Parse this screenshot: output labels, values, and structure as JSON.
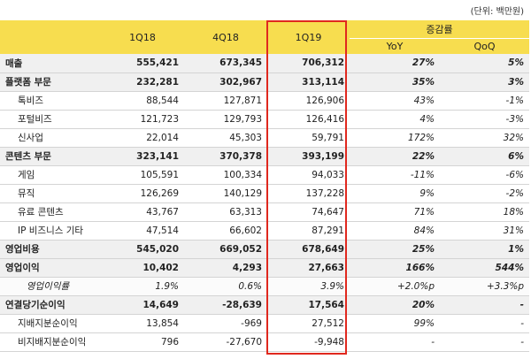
{
  "unit_note": "(단위: 백만원)",
  "headers": {
    "periods": [
      "1Q18",
      "4Q18",
      "1Q19"
    ],
    "growth": "증감률",
    "yoy": "YoY",
    "qoq": "QoQ"
  },
  "rows": [
    {
      "label": "매출",
      "v1": "555,421",
      "v2": "673,345",
      "v3": "706,312",
      "yoy": "27%",
      "qoq": "5%"
    },
    {
      "label": "플랫폼 부문",
      "v1": "232,281",
      "v2": "302,967",
      "v3": "313,114",
      "yoy": "35%",
      "qoq": "3%"
    },
    {
      "label": "톡비즈",
      "v1": "88,544",
      "v2": "127,871",
      "v3": "126,906",
      "yoy": "43%",
      "qoq": "-1%"
    },
    {
      "label": "포털비즈",
      "v1": "121,723",
      "v2": "129,793",
      "v3": "126,416",
      "yoy": "4%",
      "qoq": "-3%"
    },
    {
      "label": "신사업",
      "v1": "22,014",
      "v2": "45,303",
      "v3": "59,791",
      "yoy": "172%",
      "qoq": "32%"
    },
    {
      "label": "콘텐츠 부문",
      "v1": "323,141",
      "v2": "370,378",
      "v3": "393,199",
      "yoy": "22%",
      "qoq": "6%"
    },
    {
      "label": "게임",
      "v1": "105,591",
      "v2": "100,334",
      "v3": "94,033",
      "yoy": "-11%",
      "qoq": "-6%"
    },
    {
      "label": "뮤직",
      "v1": "126,269",
      "v2": "140,129",
      "v3": "137,228",
      "yoy": "9%",
      "qoq": "-2%"
    },
    {
      "label": "유료 콘텐츠",
      "v1": "43,767",
      "v2": "63,313",
      "v3": "74,647",
      "yoy": "71%",
      "qoq": "18%"
    },
    {
      "label": "IP 비즈니스 기타",
      "v1": "47,514",
      "v2": "66,602",
      "v3": "87,291",
      "yoy": "84%",
      "qoq": "31%"
    },
    {
      "label": "영업비용",
      "v1": "545,020",
      "v2": "669,052",
      "v3": "678,649",
      "yoy": "25%",
      "qoq": "1%"
    },
    {
      "label": "영업이익",
      "v1": "10,402",
      "v2": "4,293",
      "v3": "27,663",
      "yoy": "166%",
      "qoq": "544%"
    },
    {
      "label": "영업이익률",
      "v1": "1.9%",
      "v2": "0.6%",
      "v3": "3.9%",
      "yoy": "+2.0%p",
      "qoq": "+3.3%p"
    },
    {
      "label": "연결당기순이익",
      "v1": "14,649",
      "v2": "-28,639",
      "v3": "17,564",
      "yoy": "20%",
      "qoq": "-"
    },
    {
      "label": "지배지분순이익",
      "v1": "13,854",
      "v2": "-969",
      "v3": "27,512",
      "yoy": "99%",
      "qoq": "-"
    },
    {
      "label": "비지배지분순이익",
      "v1": "796",
      "v2": "-27,670",
      "v3": "-9,948",
      "yoy": "-",
      "qoq": "-"
    }
  ]
}
